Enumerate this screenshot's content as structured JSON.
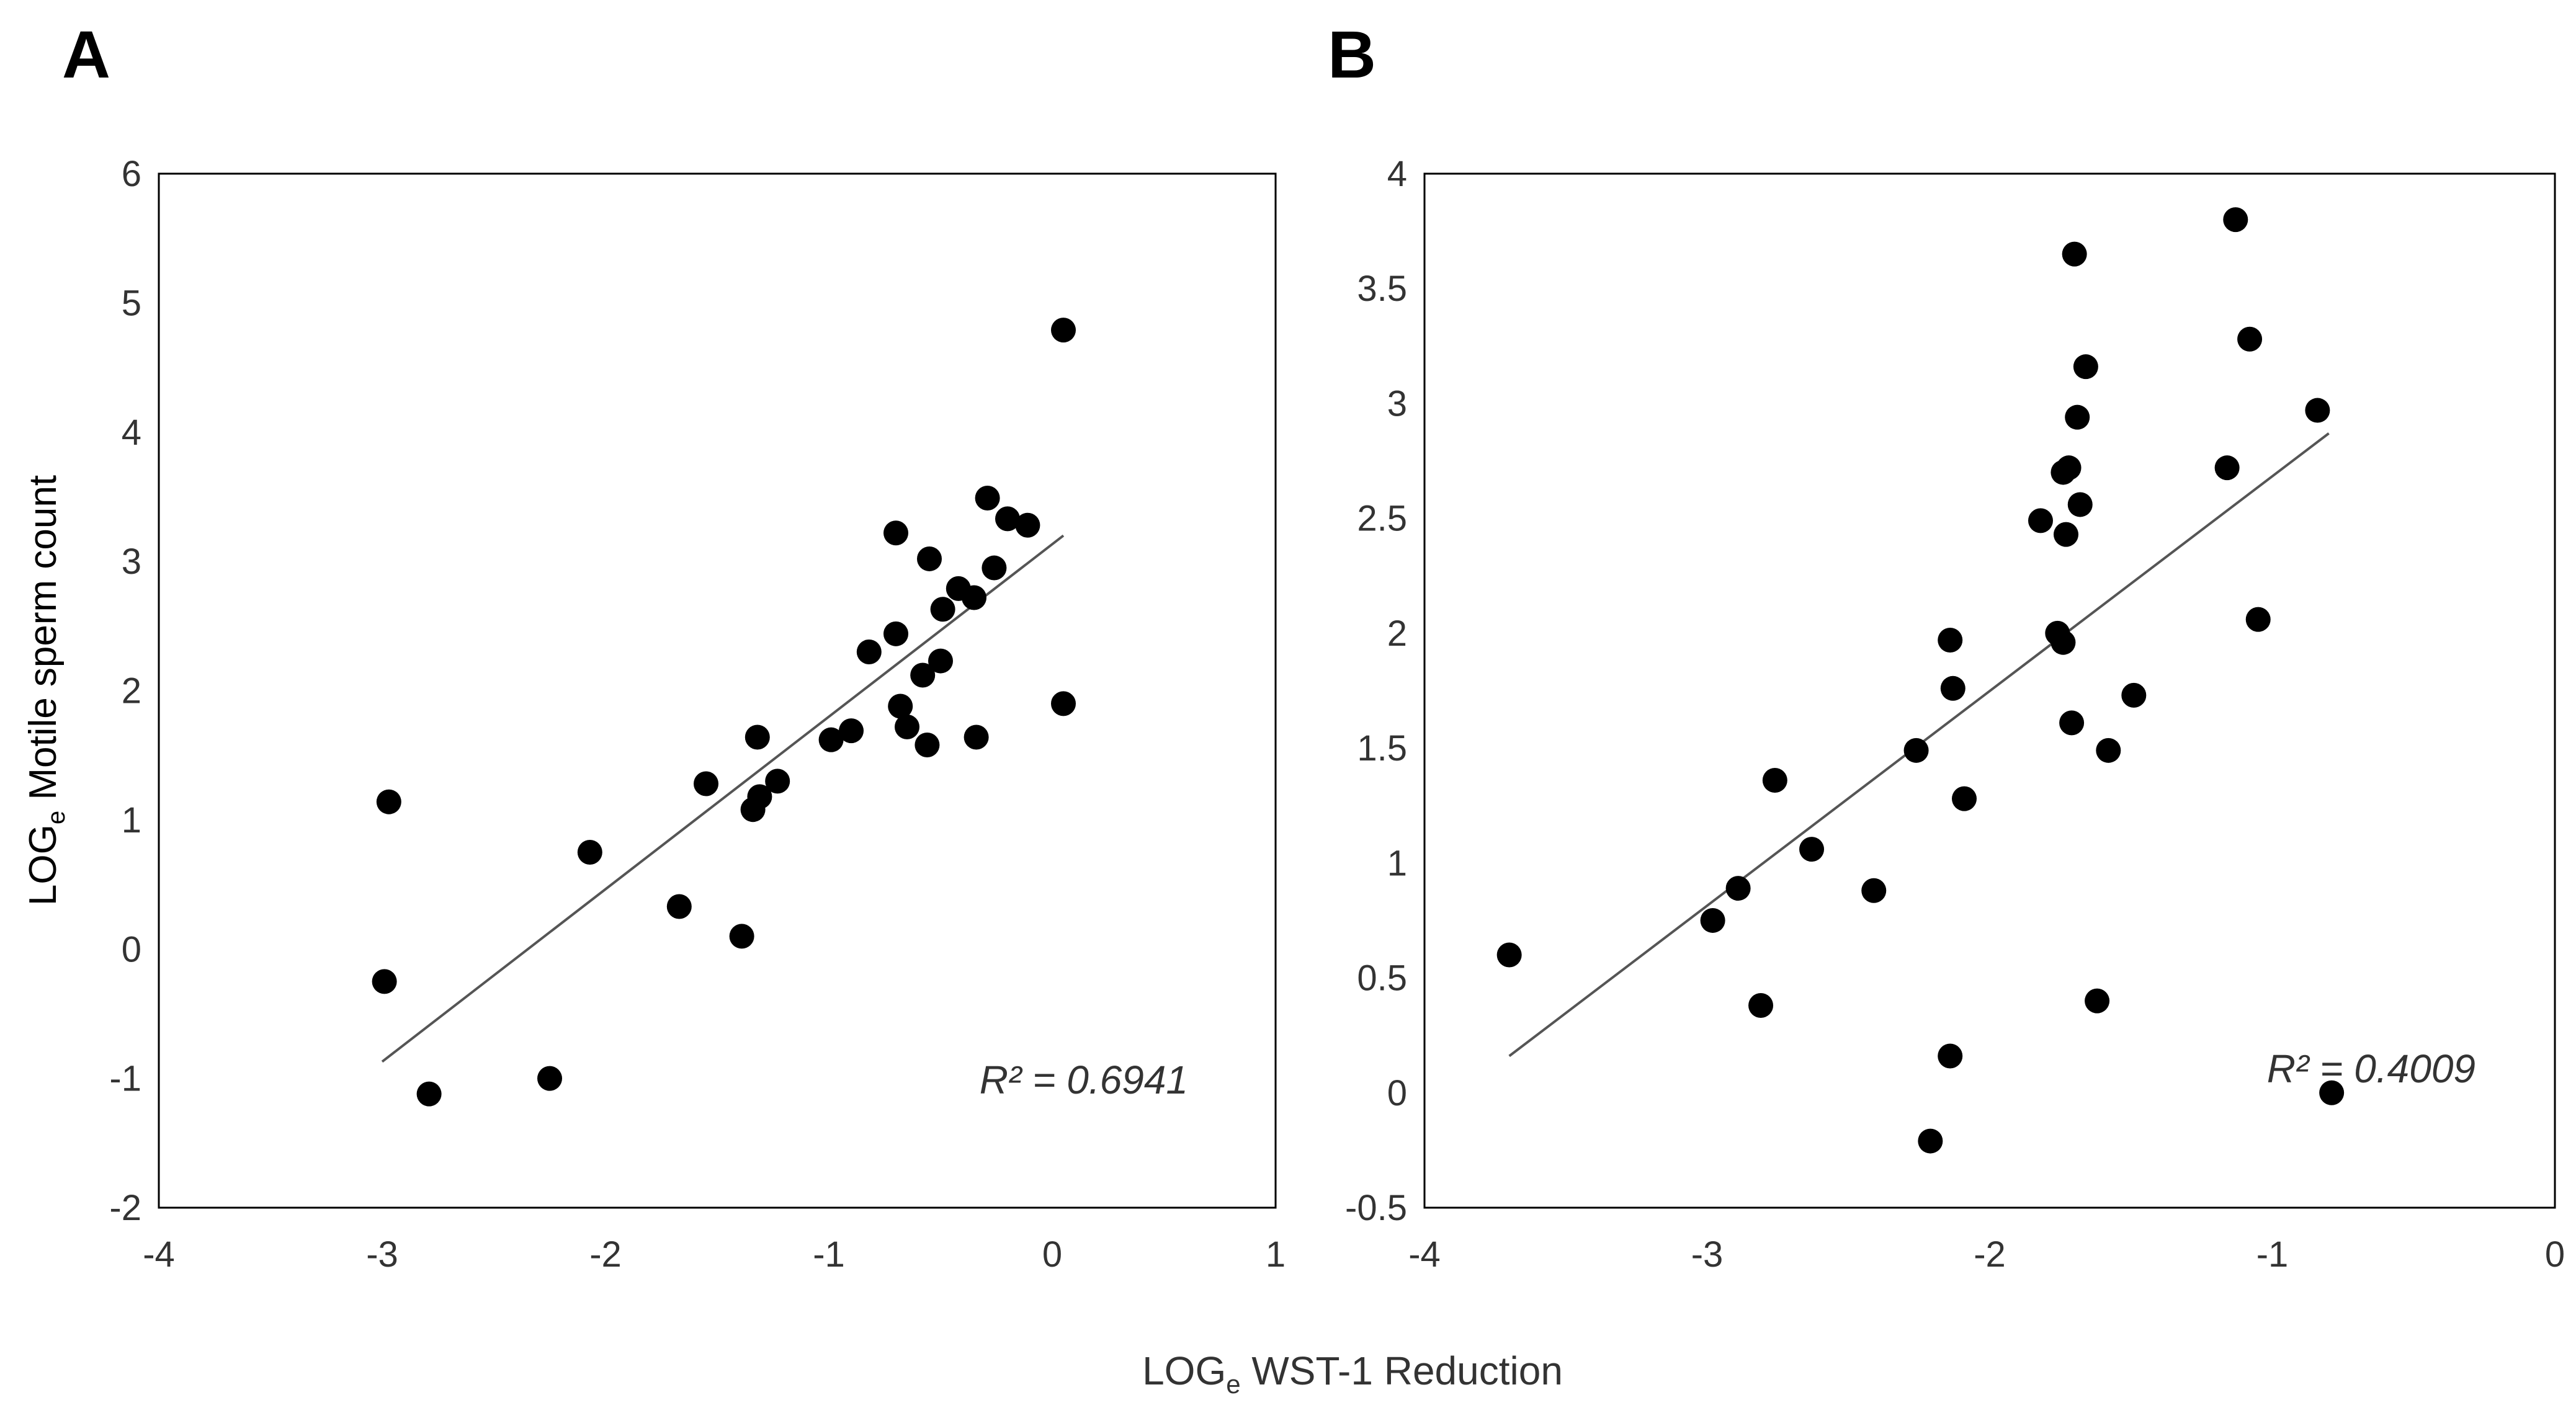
{
  "figure": {
    "xlabel_main": "LOG",
    "xlabel_sub": "e",
    "xlabel_rest": " WST-1 Reduction",
    "colors": {
      "marker": "#000000",
      "trend": "#555555",
      "frame": "#000000",
      "text": "#333333"
    }
  },
  "chart_data": [
    {
      "type": "scatter",
      "panel_label": "A",
      "title": "",
      "ylabel_main": "LOG",
      "ylabel_sub": "e",
      "ylabel_rest": " Motile sperm count",
      "xlim": [
        -4,
        1
      ],
      "ylim": [
        -2,
        6
      ],
      "xticks": [
        -4,
        -3,
        -2,
        -1,
        0,
        1
      ],
      "yticks": [
        -2,
        -1,
        0,
        1,
        2,
        3,
        4,
        5,
        6
      ],
      "grid": false,
      "trendline": {
        "x": [
          -3,
          0.05
        ],
        "y": [
          -0.87,
          3.2
        ]
      },
      "annotation": "R² = 0.6941",
      "x": [
        -2.97,
        -2.99,
        -2.79,
        -2.25,
        -2.07,
        -1.67,
        -1.55,
        -1.39,
        -1.34,
        -1.32,
        -1.31,
        -1.23,
        -0.99,
        -0.9,
        -0.82,
        -0.7,
        -0.7,
        -0.68,
        -0.65,
        -0.58,
        -0.56,
        -0.55,
        -0.5,
        -0.49,
        -0.42,
        -0.35,
        -0.34,
        -0.29,
        -0.26,
        -0.2,
        -0.11,
        0.05,
        0.05
      ],
      "y": [
        1.14,
        -0.25,
        -1.12,
        -1.0,
        0.75,
        0.33,
        1.28,
        0.1,
        1.08,
        1.64,
        1.18,
        1.3,
        1.62,
        1.69,
        2.3,
        3.22,
        2.44,
        1.88,
        1.72,
        2.12,
        1.58,
        3.02,
        2.23,
        2.63,
        2.79,
        2.72,
        1.64,
        3.49,
        2.95,
        3.33,
        3.28,
        4.79,
        1.9
      ]
    },
    {
      "type": "scatter",
      "panel_label": "B",
      "title": "",
      "ylabel_main": "",
      "xlim": [
        -4,
        0
      ],
      "ylim": [
        -0.5,
        4
      ],
      "xticks": [
        -4,
        -3,
        -2,
        -1,
        0
      ],
      "yticks": [
        -0.5,
        0,
        0.5,
        1,
        1.5,
        2,
        2.5,
        3,
        3.5,
        4
      ],
      "ytick_labels": [
        "-0.5",
        "0",
        "0.5",
        "1",
        "1.5",
        "2",
        "2.5",
        "3",
        "3.5",
        "4"
      ],
      "grid": false,
      "trendline": {
        "x": [
          -3.7,
          -0.8
        ],
        "y": [
          0.16,
          2.87
        ]
      },
      "annotation": "R² = 0.4009",
      "x": [
        -3.7,
        -2.98,
        -2.89,
        -2.81,
        -2.76,
        -2.63,
        -2.41,
        -2.26,
        -2.21,
        -2.14,
        -2.14,
        -2.13,
        -2.09,
        -1.82,
        -1.76,
        -1.74,
        -1.74,
        -1.73,
        -1.72,
        -1.71,
        -1.7,
        -1.69,
        -1.68,
        -1.66,
        -1.62,
        -1.58,
        -1.49,
        -1.16,
        -1.13,
        -1.08,
        -1.05,
        -0.84,
        -0.79
      ],
      "y": [
        0.6,
        0.75,
        0.89,
        0.38,
        1.36,
        1.06,
        0.88,
        1.49,
        -0.21,
        1.97,
        0.16,
        1.76,
        1.28,
        2.49,
        2.0,
        1.96,
        2.7,
        2.43,
        2.72,
        1.61,
        3.65,
        2.94,
        2.56,
        3.16,
        0.4,
        1.49,
        1.73,
        2.72,
        3.8,
        3.28,
        2.06,
        2.97,
        0
      ]
    }
  ]
}
